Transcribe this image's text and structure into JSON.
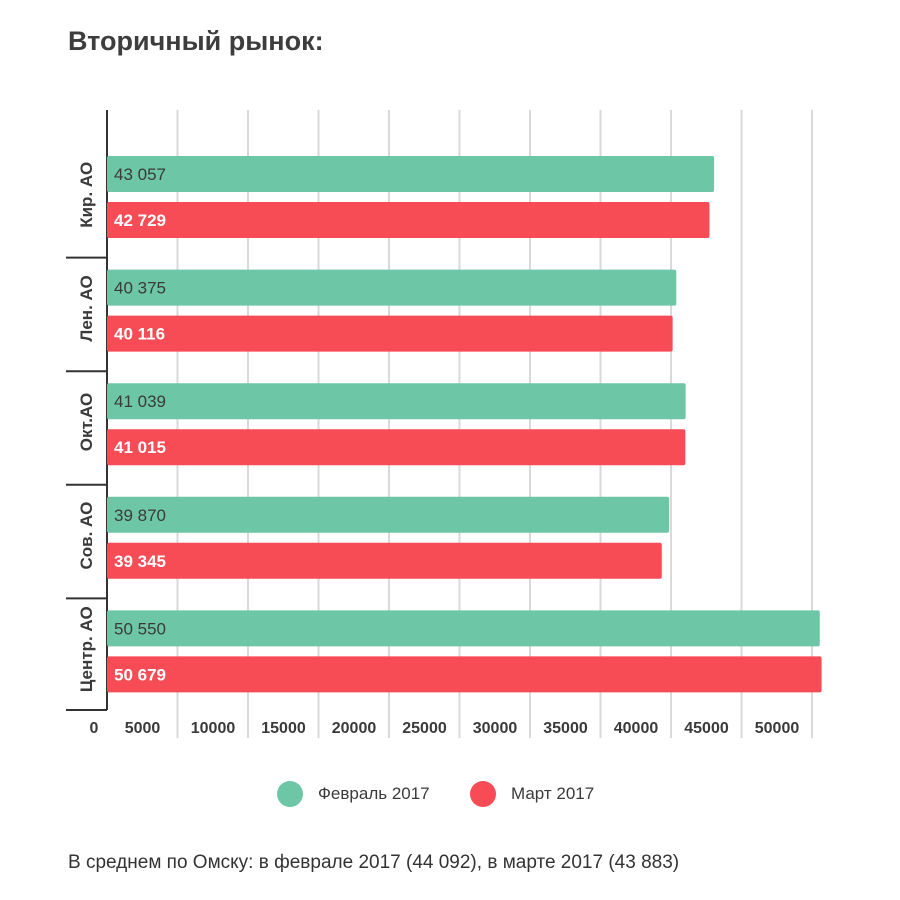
{
  "title": "Вторичный рынок:",
  "footnote": "В среднем по Омску: в феврале 2017 (44 092), в марте 2017 (43 883)",
  "colors": {
    "february": "#6dc6a6",
    "march": "#f74b55",
    "grid": "#d9d9d9",
    "axis": "#333333"
  },
  "legend": [
    {
      "label": "Февраль 2017",
      "color": "#6dc6a6"
    },
    {
      "label": "Март 2017",
      "color": "#f74b55"
    }
  ],
  "chart_data": {
    "type": "bar",
    "orientation": "horizontal",
    "categories": [
      "Кир. АО",
      "Лен. АО",
      "Окт.АО",
      "Сов. АО",
      "Центр. АО"
    ],
    "series": [
      {
        "name": "Февраль 2017",
        "color": "#6dc6a6",
        "values": [
          43057,
          40375,
          41039,
          39870,
          50550
        ],
        "labels": [
          "43 057",
          "40 375",
          "41 039",
          "39 870",
          "50 550"
        ]
      },
      {
        "name": "Март 2017",
        "color": "#f74b55",
        "values": [
          42729,
          40116,
          41015,
          39345,
          50679
        ],
        "labels": [
          "42 729",
          "40 116",
          "41 015",
          "39 345",
          "50 679"
        ]
      }
    ],
    "x_ticks": [
      0,
      5000,
      10000,
      15000,
      20000,
      25000,
      30000,
      35000,
      40000,
      45000,
      50000
    ],
    "x_tick_labels": [
      "0",
      "5000",
      "10000",
      "15000",
      "20000",
      "25000",
      "30000",
      "35000",
      "40000",
      "45000",
      "50000"
    ],
    "xlim": [
      0,
      50000
    ],
    "grid": true,
    "legend_position": "bottom"
  }
}
